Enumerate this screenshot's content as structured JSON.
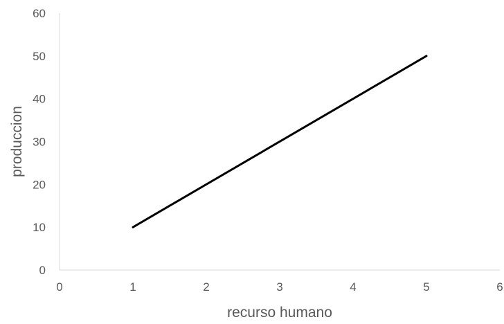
{
  "chart_data": {
    "type": "line",
    "title": "",
    "xlabel": "recurso humano",
    "ylabel": "produccion",
    "xlim": [
      0,
      6
    ],
    "ylim": [
      0,
      60
    ],
    "xticks": [
      0,
      1,
      2,
      3,
      4,
      5,
      6
    ],
    "yticks": [
      0,
      10,
      20,
      30,
      40,
      50,
      60
    ],
    "grid": false,
    "legend": "none",
    "series": [
      {
        "x": [
          1,
          5
        ],
        "y": [
          10,
          50
        ],
        "color": "#000000"
      }
    ]
  }
}
